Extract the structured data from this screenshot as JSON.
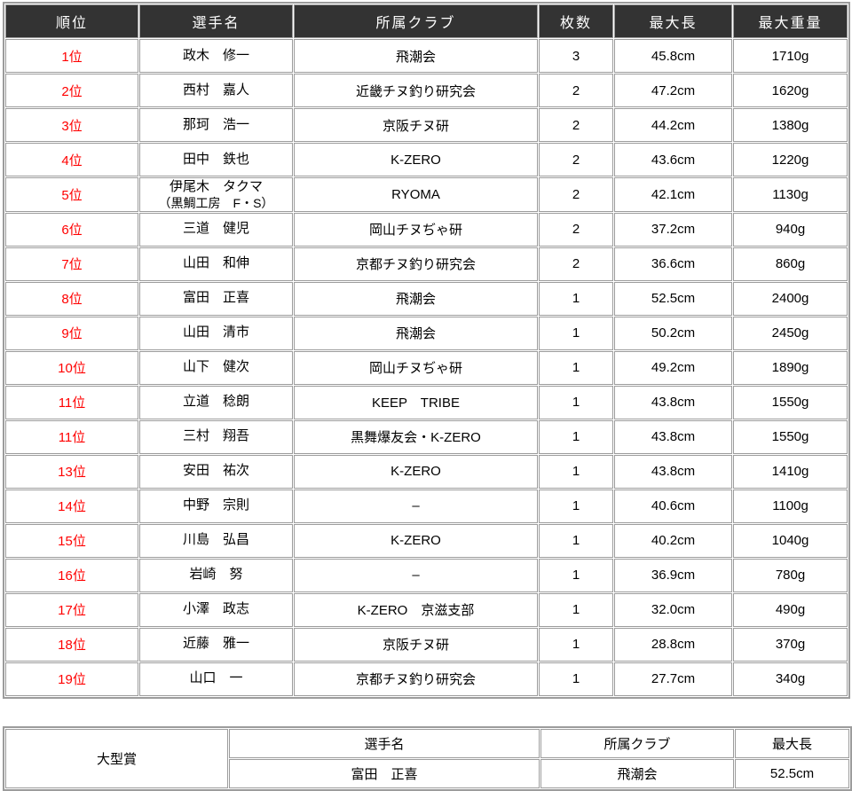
{
  "colors": {
    "header_bg": "#333333",
    "header_text": "#ffffff",
    "rank_red": "#ff0000",
    "grid_gray": "#9c9c9c",
    "body_text": "#000000"
  },
  "main_table": {
    "columns": [
      "順位",
      "選手名",
      "所属クラブ",
      "枚数",
      "最大長",
      "最大重量"
    ],
    "rows": [
      {
        "rank": "1位",
        "name": "政木　修一",
        "name_line2": "",
        "club": "飛潮会",
        "count": "3",
        "length": "45.8cm",
        "weight": "1710g"
      },
      {
        "rank": "2位",
        "name": "西村　嘉人",
        "name_line2": "",
        "club": "近畿チヌ釣り研究会",
        "count": "2",
        "length": "47.2cm",
        "weight": "1620g"
      },
      {
        "rank": "3位",
        "name": "那珂　浩一",
        "name_line2": "",
        "club": "京阪チヌ研",
        "count": "2",
        "length": "44.2cm",
        "weight": "1380g"
      },
      {
        "rank": "4位",
        "name": "田中　鉄也",
        "name_line2": "",
        "club": "K-ZERO",
        "count": "2",
        "length": "43.6cm",
        "weight": "1220g"
      },
      {
        "rank": "5位",
        "name": "伊尾木　タクマ",
        "name_line2": "（黒鯛工房　F・S）",
        "club": "RYOMA",
        "count": "2",
        "length": "42.1cm",
        "weight": "1130g"
      },
      {
        "rank": "6位",
        "name": "三道　健児",
        "name_line2": "",
        "club": "岡山チヌぢゃ研",
        "count": "2",
        "length": "37.2cm",
        "weight": "940g"
      },
      {
        "rank": "7位",
        "name": "山田　和伸",
        "name_line2": "",
        "club": "京都チヌ釣り研究会",
        "count": "2",
        "length": "36.6cm",
        "weight": "860g"
      },
      {
        "rank": "8位",
        "name": "富田　正喜",
        "name_line2": "",
        "club": "飛潮会",
        "count": "1",
        "length": "52.5cm",
        "weight": "2400g"
      },
      {
        "rank": "9位",
        "name": "山田　清市",
        "name_line2": "",
        "club": "飛潮会",
        "count": "1",
        "length": "50.2cm",
        "weight": "2450g"
      },
      {
        "rank": "10位",
        "name": "山下　健次",
        "name_line2": "",
        "club": "岡山チヌぢゃ研",
        "count": "1",
        "length": "49.2cm",
        "weight": "1890g"
      },
      {
        "rank": "11位",
        "name": "立道　稔朗",
        "name_line2": "",
        "club": "KEEP　TRIBE",
        "count": "1",
        "length": "43.8cm",
        "weight": "1550g"
      },
      {
        "rank": "11位",
        "name": "三村　翔吾",
        "name_line2": "",
        "club": "黒舞爆友会・K-ZERO",
        "count": "1",
        "length": "43.8cm",
        "weight": "1550g"
      },
      {
        "rank": "13位",
        "name": "安田　祐次",
        "name_line2": "",
        "club": "K-ZERO",
        "count": "1",
        "length": "43.8cm",
        "weight": "1410g"
      },
      {
        "rank": "14位",
        "name": "中野　宗則",
        "name_line2": "",
        "club": "–",
        "count": "1",
        "length": "40.6cm",
        "weight": "1100g"
      },
      {
        "rank": "15位",
        "name": "川島　弘昌",
        "name_line2": "",
        "club": "K-ZERO",
        "count": "1",
        "length": "40.2cm",
        "weight": "1040g"
      },
      {
        "rank": "16位",
        "name": "岩崎　努",
        "name_line2": "",
        "club": "–",
        "count": "1",
        "length": "36.9cm",
        "weight": "780g"
      },
      {
        "rank": "17位",
        "name": "小澤　政志",
        "name_line2": "",
        "club": "K-ZERO　京滋支部",
        "count": "1",
        "length": "32.0cm",
        "weight": "490g"
      },
      {
        "rank": "18位",
        "name": "近藤　雅一",
        "name_line2": "",
        "club": "京阪チヌ研",
        "count": "1",
        "length": "28.8cm",
        "weight": "370g"
      },
      {
        "rank": "19位",
        "name": "山口　一",
        "name_line2": "",
        "club": "京都チヌ釣り研究会",
        "count": "1",
        "length": "27.7cm",
        "weight": "340g"
      }
    ]
  },
  "award_table": {
    "award_label": "大型賞",
    "columns": [
      "選手名",
      "所属クラブ",
      "最大長"
    ],
    "row": {
      "name": "富田　正喜",
      "club": "飛潮会",
      "length": "52.5cm"
    }
  }
}
